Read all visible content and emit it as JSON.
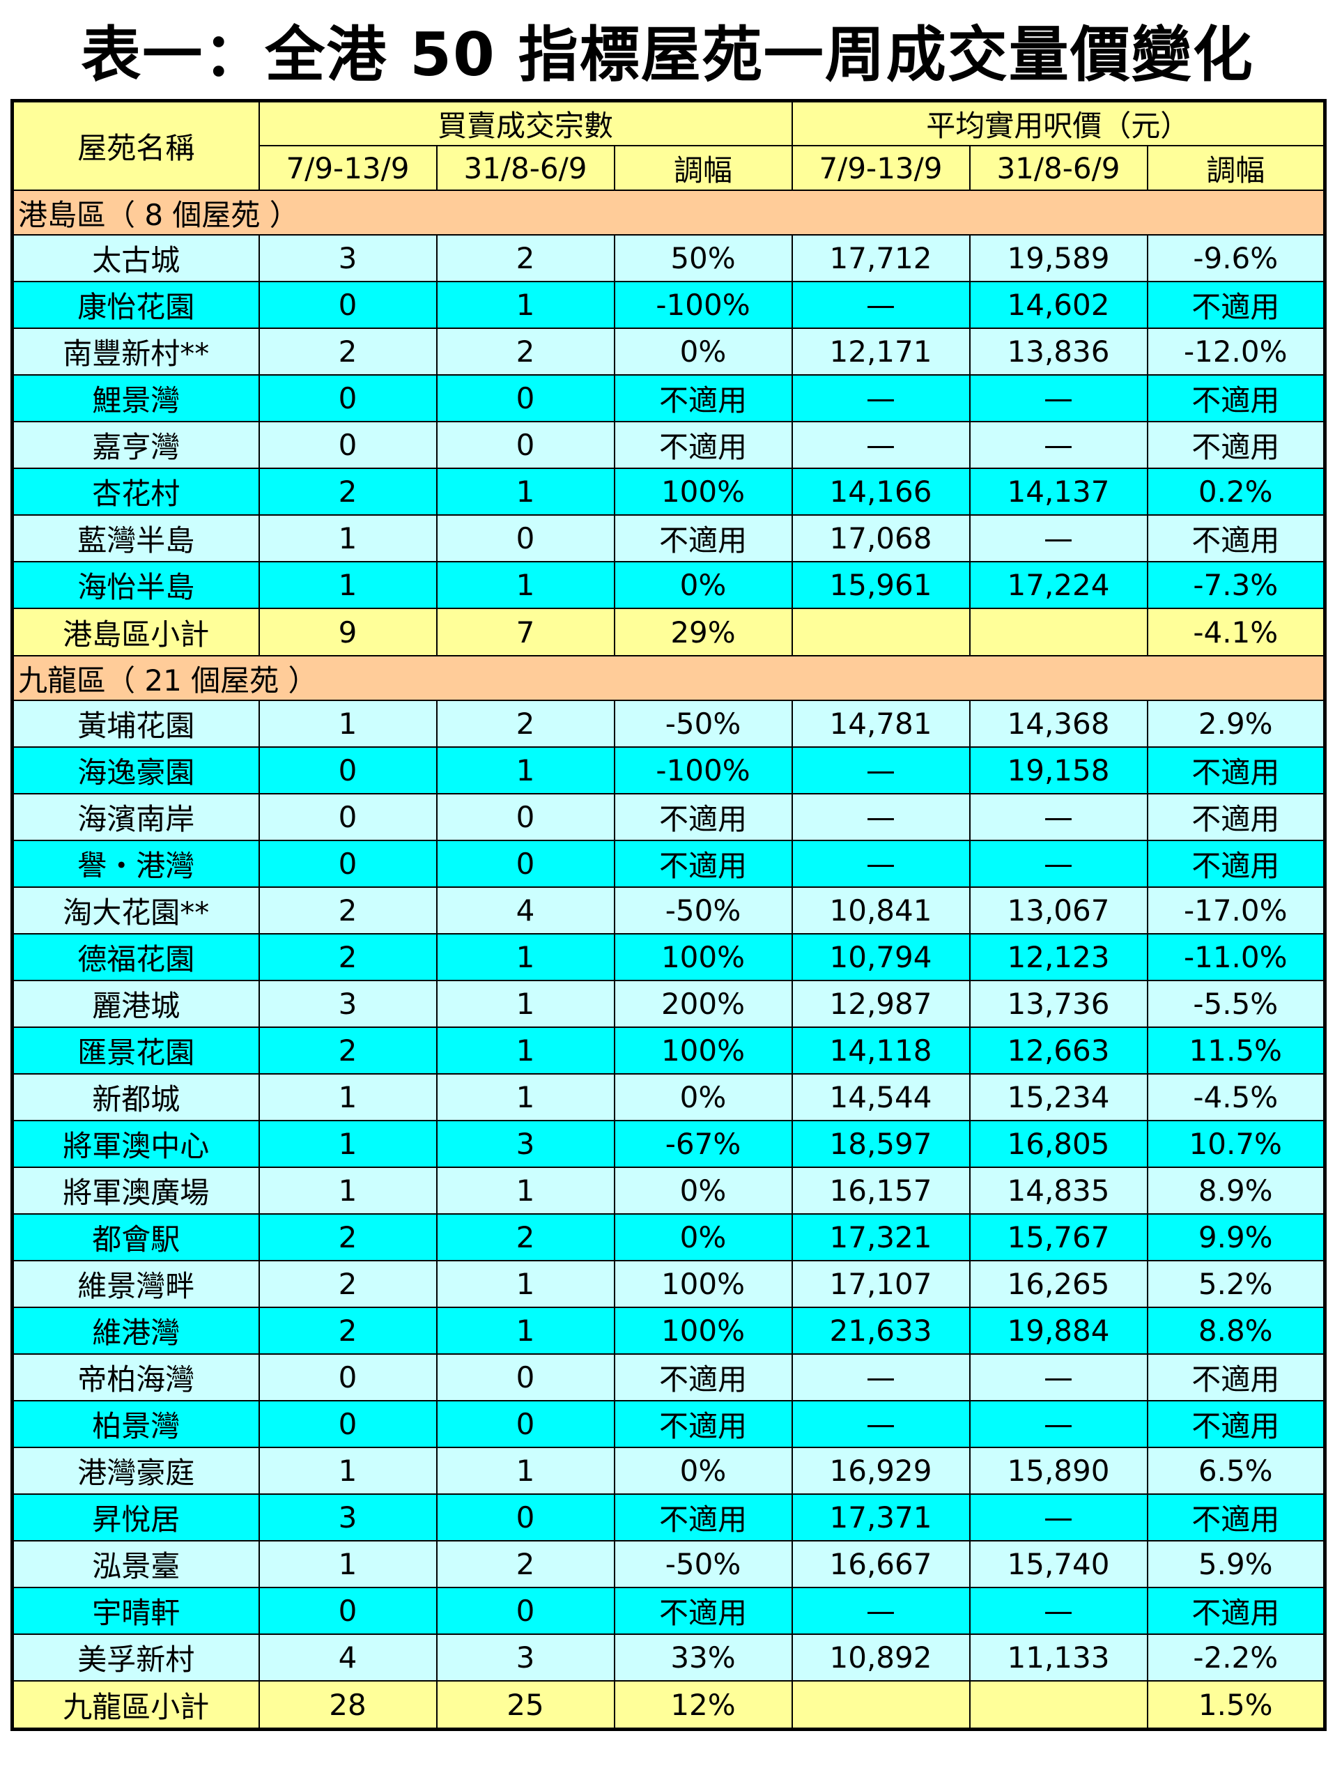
{
  "title": "表一：全港 50 指標屋苑一周成交量價變化",
  "header": {
    "estate_name": "屋苑名稱",
    "transactions_group": "買賣成交宗數",
    "price_group": "平均實用呎價（元）",
    "period_current": "7/9-13/9",
    "period_previous": "31/8-6/9",
    "change": "調幅"
  },
  "sections": [
    {
      "heading": "港島區（ 8 個屋苑 ）",
      "rows": [
        {
          "name": "太古城",
          "t1": "3",
          "t2": "2",
          "tc": "50%",
          "p1": "17,712",
          "p2": "19,589",
          "pc": "-9.6%",
          "shade": "light"
        },
        {
          "name": "康怡花園",
          "t1": "0",
          "t2": "1",
          "tc": "-100%",
          "p1": "—",
          "p2": "14,602",
          "pc": "不適用",
          "shade": "cyan"
        },
        {
          "name": "南豐新村**",
          "t1": "2",
          "t2": "2",
          "tc": "0%",
          "p1": "12,171",
          "p2": "13,836",
          "pc": "-12.0%",
          "shade": "light"
        },
        {
          "name": "鯉景灣",
          "t1": "0",
          "t2": "0",
          "tc": "不適用",
          "p1": "—",
          "p2": "—",
          "pc": "不適用",
          "shade": "cyan"
        },
        {
          "name": "嘉亨灣",
          "t1": "0",
          "t2": "0",
          "tc": "不適用",
          "p1": "—",
          "p2": "—",
          "pc": "不適用",
          "shade": "light"
        },
        {
          "name": "杏花村",
          "t1": "2",
          "t2": "1",
          "tc": "100%",
          "p1": "14,166",
          "p2": "14,137",
          "pc": "0.2%",
          "shade": "cyan"
        },
        {
          "name": "藍灣半島",
          "t1": "1",
          "t2": "0",
          "tc": "不適用",
          "p1": "17,068",
          "p2": "—",
          "pc": "不適用",
          "shade": "light"
        },
        {
          "name": "海怡半島",
          "t1": "1",
          "t2": "1",
          "tc": "0%",
          "p1": "15,961",
          "p2": "17,224",
          "pc": "-7.3%",
          "shade": "cyan"
        }
      ],
      "subtotal": {
        "name": "港島區小計",
        "t1": "9",
        "t2": "7",
        "tc": "29%",
        "p1": "",
        "p2": "",
        "pc": "-4.1%"
      }
    },
    {
      "heading": "九龍區（ 21 個屋苑 ）",
      "rows": [
        {
          "name": "黃埔花園",
          "t1": "1",
          "t2": "2",
          "tc": "-50%",
          "p1": "14,781",
          "p2": "14,368",
          "pc": "2.9%",
          "shade": "light"
        },
        {
          "name": "海逸豪園",
          "t1": "0",
          "t2": "1",
          "tc": "-100%",
          "p1": "—",
          "p2": "19,158",
          "pc": "不適用",
          "shade": "cyan"
        },
        {
          "name": "海濱南岸",
          "t1": "0",
          "t2": "0",
          "tc": "不適用",
          "p1": "—",
          "p2": "—",
          "pc": "不適用",
          "shade": "light"
        },
        {
          "name": "譽・港灣",
          "t1": "0",
          "t2": "0",
          "tc": "不適用",
          "p1": "—",
          "p2": "—",
          "pc": "不適用",
          "shade": "cyan"
        },
        {
          "name": "淘大花園**",
          "t1": "2",
          "t2": "4",
          "tc": "-50%",
          "p1": "10,841",
          "p2": "13,067",
          "pc": "-17.0%",
          "shade": "light"
        },
        {
          "name": "德福花園",
          "t1": "2",
          "t2": "1",
          "tc": "100%",
          "p1": "10,794",
          "p2": "12,123",
          "pc": "-11.0%",
          "shade": "cyan"
        },
        {
          "name": "麗港城",
          "t1": "3",
          "t2": "1",
          "tc": "200%",
          "p1": "12,987",
          "p2": "13,736",
          "pc": "-5.5%",
          "shade": "light"
        },
        {
          "name": "匯景花園",
          "t1": "2",
          "t2": "1",
          "tc": "100%",
          "p1": "14,118",
          "p2": "12,663",
          "pc": "11.5%",
          "shade": "cyan"
        },
        {
          "name": "新都城",
          "t1": "1",
          "t2": "1",
          "tc": "0%",
          "p1": "14,544",
          "p2": "15,234",
          "pc": "-4.5%",
          "shade": "light"
        },
        {
          "name": "將軍澳中心",
          "t1": "1",
          "t2": "3",
          "tc": "-67%",
          "p1": "18,597",
          "p2": "16,805",
          "pc": "10.7%",
          "shade": "cyan"
        },
        {
          "name": "將軍澳廣場",
          "t1": "1",
          "t2": "1",
          "tc": "0%",
          "p1": "16,157",
          "p2": "14,835",
          "pc": "8.9%",
          "shade": "light"
        },
        {
          "name": "都會駅",
          "t1": "2",
          "t2": "2",
          "tc": "0%",
          "p1": "17,321",
          "p2": "15,767",
          "pc": "9.9%",
          "shade": "cyan"
        },
        {
          "name": "維景灣畔",
          "t1": "2",
          "t2": "1",
          "tc": "100%",
          "p1": "17,107",
          "p2": "16,265",
          "pc": "5.2%",
          "shade": "light"
        },
        {
          "name": "維港灣",
          "t1": "2",
          "t2": "1",
          "tc": "100%",
          "p1": "21,633",
          "p2": "19,884",
          "pc": "8.8%",
          "shade": "cyan"
        },
        {
          "name": "帝柏海灣",
          "t1": "0",
          "t2": "0",
          "tc": "不適用",
          "p1": "—",
          "p2": "—",
          "pc": "不適用",
          "shade": "light"
        },
        {
          "name": "柏景灣",
          "t1": "0",
          "t2": "0",
          "tc": "不適用",
          "p1": "—",
          "p2": "—",
          "pc": "不適用",
          "shade": "cyan"
        },
        {
          "name": "港灣豪庭",
          "t1": "1",
          "t2": "1",
          "tc": "0%",
          "p1": "16,929",
          "p2": "15,890",
          "pc": "6.5%",
          "shade": "light"
        },
        {
          "name": "昇悅居",
          "t1": "3",
          "t2": "0",
          "tc": "不適用",
          "p1": "17,371",
          "p2": "—",
          "pc": "不適用",
          "shade": "cyan"
        },
        {
          "name": "泓景臺",
          "t1": "1",
          "t2": "2",
          "tc": "-50%",
          "p1": "16,667",
          "p2": "15,740",
          "pc": "5.9%",
          "shade": "light"
        },
        {
          "name": "宇晴軒",
          "t1": "0",
          "t2": "0",
          "tc": "不適用",
          "p1": "—",
          "p2": "—",
          "pc": "不適用",
          "shade": "cyan"
        },
        {
          "name": "美孚新村",
          "t1": "4",
          "t2": "3",
          "tc": "33%",
          "p1": "10,892",
          "p2": "11,133",
          "pc": "-2.2%",
          "shade": "light"
        }
      ],
      "subtotal": {
        "name": "九龍區小計",
        "t1": "28",
        "t2": "25",
        "tc": "12%",
        "p1": "",
        "p2": "",
        "pc": "1.5%"
      }
    }
  ]
}
